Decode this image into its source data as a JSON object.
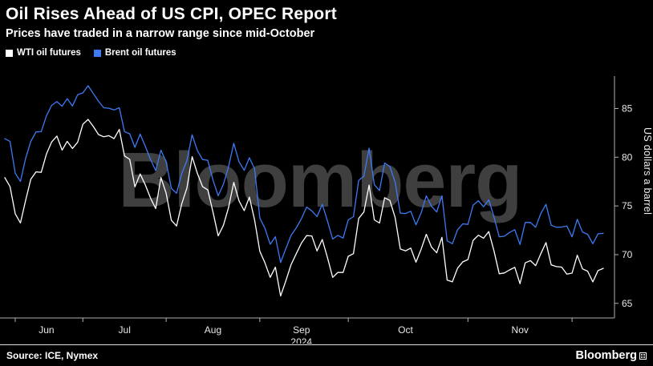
{
  "header": {
    "title": "Oil Rises Ahead of US CPI, OPEC Report",
    "subtitle": "Prices have traded in a narrow range since mid-October"
  },
  "legend": [
    {
      "label": "WTI oil futures",
      "color": "#ffffff"
    },
    {
      "label": "Brent oil futures",
      "color": "#3d7af5"
    }
  ],
  "watermark": "Bloomberg",
  "footer": {
    "source": "Source: ICE, Nymex",
    "logo": "Bloomberg"
  },
  "colors": {
    "background": "#000000",
    "wti_line": "#ffffff",
    "brent_line": "#3d7af5",
    "axis": "#b0b0b0",
    "tick_text": "#e8e8e8",
    "watermark": "#3f3f3f"
  },
  "chart_data": {
    "type": "line",
    "title": "Oil Rises Ahead of US CPI, OPEC Report",
    "subtitle": "Prices have traded in a narrow range since mid-October",
    "legend_position": "top-left",
    "grid": false,
    "x_axis": {
      "year_label": "2024",
      "year_index": 57,
      "boundary_ticks": [
        2,
        15,
        31,
        49,
        66,
        89,
        109
      ],
      "month_labels": [
        {
          "label": "Jun",
          "index": 8
        },
        {
          "label": "Jul",
          "index": 23
        },
        {
          "label": "Aug",
          "index": 40
        },
        {
          "label": "Sep",
          "index": 57
        },
        {
          "label": "Oct",
          "index": 77
        },
        {
          "label": "Nov",
          "index": 99
        }
      ]
    },
    "y_axis": {
      "label": "US dollars a barrel",
      "ticks": [
        65,
        70,
        75,
        80,
        85
      ],
      "range": [
        63.5,
        88
      ]
    },
    "series": [
      {
        "name": "WTI oil futures",
        "color": "#ffffff",
        "values": [
          77.9,
          76.99,
          74.2,
          73.25,
          75.55,
          77.74,
          78.5,
          78.45,
          80.33,
          81.57,
          82.17,
          80.73,
          81.63,
          80.9,
          81.54,
          83.38,
          83.88,
          83.16,
          82.33,
          82.1,
          82.21,
          81.91,
          82.85,
          80.13,
          79.78,
          76.96,
          78.28,
          77.16,
          75.81,
          74.73,
          77.91,
          76.31,
          73.52,
          72.94,
          75.23,
          76.84,
          80.06,
          78.35,
          76.98,
          76.65,
          74.37,
          71.93,
          73.01,
          74.83,
          77.42,
          75.53,
          74.52,
          75.91,
          73.55,
          70.34,
          69.15,
          67.67,
          68.71,
          65.75,
          67.31,
          68.97,
          70.09,
          71.19,
          71.95,
          71.92,
          70.37,
          71.56,
          69.69,
          67.67,
          68.18,
          68.17,
          69.83,
          70.1,
          73.71,
          74.38,
          77.14,
          73.57,
          73.24,
          75.85,
          75.56,
          73.83,
          70.58,
          70.39,
          70.67,
          69.22,
          70.56,
          72.09,
          70.77,
          70.19,
          71.78,
          67.38,
          67.21,
          68.61,
          69.26,
          69.49,
          71.47,
          71.99,
          71.69,
          72.36,
          70.38,
          68.04,
          68.12,
          68.43,
          68.7,
          67.02,
          69.16,
          69.39,
          68.87,
          70.1,
          71.24,
          68.94,
          68.77,
          68.72,
          68.0,
          68.1,
          69.94,
          68.54,
          68.3,
          67.2,
          68.37,
          68.59
        ]
      },
      {
        "name": "Brent oil futures",
        "color": "#3d7af5",
        "values": [
          81.9,
          81.62,
          78.36,
          77.52,
          79.87,
          81.63,
          82.6,
          82.62,
          84.25,
          85.33,
          85.71,
          85.24,
          86.01,
          85.25,
          86.41,
          86.6,
          87.34,
          86.54,
          85.75,
          85.08,
          85.03,
          84.85,
          85.08,
          82.63,
          82.4,
          81.01,
          82.37,
          81.13,
          79.78,
          78.63,
          80.72,
          79.52,
          76.81,
          76.3,
          78.33,
          79.66,
          82.3,
          80.69,
          79.76,
          79.68,
          77.66,
          76.05,
          77.22,
          79.02,
          81.43,
          79.55,
          78.65,
          79.94,
          78.8,
          73.75,
          72.69,
          71.06,
          71.84,
          69.19,
          70.61,
          71.97,
          72.75,
          73.7,
          74.88,
          74.49,
          73.9,
          75.17,
          73.46,
          71.6,
          71.98,
          71.7,
          73.56,
          73.9,
          77.62,
          78.05,
          80.93,
          77.18,
          76.58,
          79.4,
          79.04,
          77.46,
          74.25,
          74.22,
          74.45,
          73.06,
          74.29,
          76.04,
          74.96,
          74.38,
          76.05,
          71.42,
          71.12,
          72.55,
          73.16,
          73.1,
          75.08,
          75.53,
          74.92,
          75.63,
          73.87,
          71.83,
          71.89,
          72.28,
          72.56,
          71.04,
          73.3,
          73.31,
          72.81,
          74.23,
          75.17,
          73.01,
          72.81,
          72.83,
          72.94,
          71.83,
          73.62,
          72.31,
          72.09,
          71.12,
          72.14,
          72.19
        ]
      }
    ]
  }
}
